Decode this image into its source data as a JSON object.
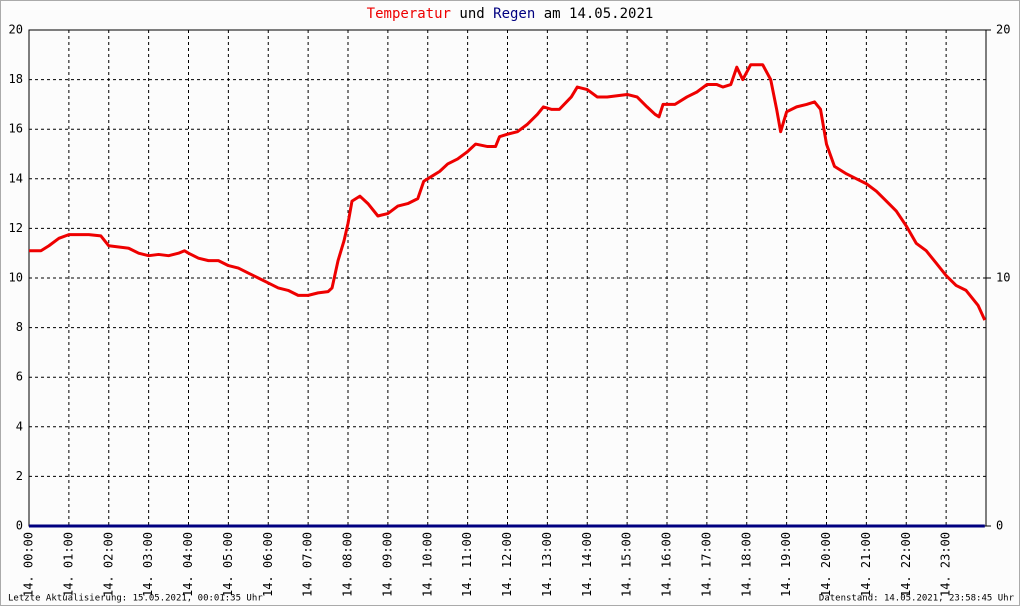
{
  "chart_data": {
    "type": "line",
    "title_joiner": "und",
    "title_suffix": "am 14.05.2021",
    "footer_left": "Letzte Aktualisierung: 15.05.2021, 00:01:35 Uhr",
    "footer_right": "Datenstand: 14.05.2021, 23:58:45 Uhr",
    "xlim": [
      0,
      24
    ],
    "xticks": [
      {
        "value": 0,
        "label": "14. 00:00"
      },
      {
        "value": 1,
        "label": "14. 01:00"
      },
      {
        "value": 2,
        "label": "14. 02:00"
      },
      {
        "value": 3,
        "label": "14. 03:00"
      },
      {
        "value": 4,
        "label": "14. 04:00"
      },
      {
        "value": 5,
        "label": "14. 05:00"
      },
      {
        "value": 6,
        "label": "14. 06:00"
      },
      {
        "value": 7,
        "label": "14. 07:00"
      },
      {
        "value": 8,
        "label": "14. 08:00"
      },
      {
        "value": 9,
        "label": "14. 09:00"
      },
      {
        "value": 10,
        "label": "14. 10:00"
      },
      {
        "value": 11,
        "label": "14. 11:00"
      },
      {
        "value": 12,
        "label": "14. 12:00"
      },
      {
        "value": 13,
        "label": "14. 13:00"
      },
      {
        "value": 14,
        "label": "14. 14:00"
      },
      {
        "value": 15,
        "label": "14. 15:00"
      },
      {
        "value": 16,
        "label": "14. 16:00"
      },
      {
        "value": 17,
        "label": "14. 17:00"
      },
      {
        "value": 18,
        "label": "14. 18:00"
      },
      {
        "value": 19,
        "label": "14. 19:00"
      },
      {
        "value": 20,
        "label": "14. 20:00"
      },
      {
        "value": 21,
        "label": "14. 21:00"
      },
      {
        "value": 22,
        "label": "14. 22:00"
      },
      {
        "value": 23,
        "label": "14. 23:00"
      }
    ],
    "ylim": [
      0,
      20
    ],
    "yticks": [
      0,
      2,
      4,
      6,
      8,
      10,
      12,
      14,
      16,
      18,
      20
    ],
    "y2lim": [
      0,
      20
    ],
    "y2ticks": [
      0,
      10,
      20
    ],
    "grid": true,
    "series": [
      {
        "name": "Temperatur",
        "color": "#ee0000",
        "x": [
          0,
          0.3,
          0.5,
          0.75,
          1.0,
          1.5,
          1.8,
          2.0,
          2.5,
          2.75,
          3.0,
          3.25,
          3.5,
          3.75,
          3.9,
          4.0,
          4.25,
          4.5,
          4.75,
          5.0,
          5.25,
          5.5,
          5.75,
          6.0,
          6.25,
          6.5,
          6.75,
          7.0,
          7.25,
          7.5,
          7.6,
          7.75,
          7.9,
          8.0,
          8.1,
          8.3,
          8.5,
          8.75,
          9.0,
          9.25,
          9.5,
          9.75,
          9.9,
          10.1,
          10.3,
          10.5,
          10.75,
          11.0,
          11.2,
          11.5,
          11.7,
          11.8,
          12.0,
          12.25,
          12.5,
          12.75,
          12.9,
          13.1,
          13.3,
          13.6,
          13.75,
          14.0,
          14.25,
          14.5,
          14.75,
          15.0,
          15.25,
          15.5,
          15.7,
          15.8,
          15.9,
          16.2,
          16.5,
          16.75,
          17.0,
          17.25,
          17.4,
          17.6,
          17.75,
          17.9,
          18.1,
          18.4,
          18.6,
          18.75,
          18.85,
          19.0,
          19.25,
          19.5,
          19.7,
          19.85,
          20.0,
          20.2,
          20.5,
          20.75,
          21.0,
          21.25,
          21.5,
          21.75,
          22.0,
          22.25,
          22.5,
          22.75,
          23.0,
          23.25,
          23.5,
          23.8,
          23.97
        ],
        "values": [
          11.1,
          11.1,
          11.3,
          11.6,
          11.75,
          11.75,
          11.7,
          11.3,
          11.2,
          11.0,
          10.9,
          10.95,
          10.9,
          11.0,
          11.1,
          11.0,
          10.8,
          10.7,
          10.7,
          10.5,
          10.4,
          10.2,
          10.0,
          9.8,
          9.6,
          9.5,
          9.3,
          9.3,
          9.4,
          9.45,
          9.6,
          10.7,
          11.5,
          12.2,
          13.1,
          13.3,
          13.0,
          12.5,
          12.6,
          12.9,
          13.0,
          13.2,
          13.9,
          14.1,
          14.3,
          14.6,
          14.8,
          15.1,
          15.4,
          15.3,
          15.3,
          15.7,
          15.8,
          15.9,
          16.2,
          16.6,
          16.9,
          16.8,
          16.8,
          17.3,
          17.7,
          17.6,
          17.3,
          17.3,
          17.35,
          17.4,
          17.3,
          16.9,
          16.6,
          16.5,
          17.0,
          17.0,
          17.3,
          17.5,
          17.8,
          17.8,
          17.7,
          17.8,
          18.5,
          18.0,
          18.6,
          18.6,
          18.0,
          16.8,
          15.9,
          16.7,
          16.9,
          17.0,
          17.1,
          16.8,
          15.4,
          14.5,
          14.2,
          14.0,
          13.8,
          13.5,
          13.1,
          12.7,
          12.1,
          11.4,
          11.1,
          10.6,
          10.1,
          9.7,
          9.5,
          8.9,
          8.3
        ]
      },
      {
        "name": "Regen",
        "color": "#000080",
        "axis": "y2",
        "x": [
          0,
          23.97
        ],
        "values": [
          0,
          0
        ]
      }
    ]
  }
}
